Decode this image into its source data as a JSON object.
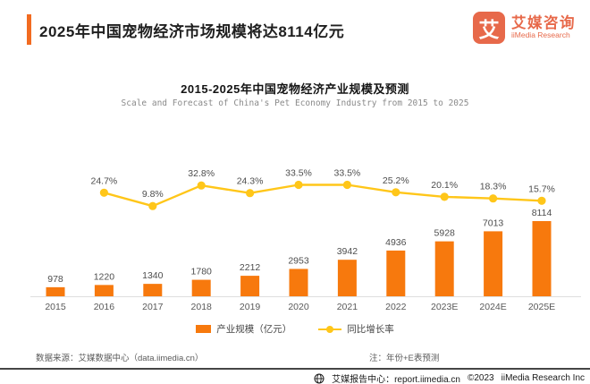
{
  "header": {
    "title": "2025年中国宠物经济市场规模将达8114亿元",
    "logo": {
      "icon": "艾",
      "name_cn": "艾媒咨询",
      "name_en": "iiMedia Research"
    }
  },
  "chart": {
    "title": "2015-2025年中国宠物经济产业规模及预测",
    "subtitle": "Scale and Forecast of China's Pet Economy Industry from 2015 to 2025"
  },
  "chart_data": {
    "type": "bar",
    "title": "2015-2025年中国宠物经济产业规模及预测",
    "categories": [
      "2015",
      "2016",
      "2017",
      "2018",
      "2019",
      "2020",
      "2021",
      "2022",
      "2023E",
      "2024E",
      "2025E"
    ],
    "series": [
      {
        "name": "产业规模（亿元）",
        "type": "bar",
        "color": "#f7790d",
        "values": [
          978,
          1220,
          1340,
          1780,
          2212,
          2953,
          3942,
          4936,
          5928,
          7013,
          8114
        ]
      },
      {
        "name": "同比增长率",
        "type": "line",
        "color": "#ffc619",
        "unit": "%",
        "values": [
          null,
          24.7,
          9.8,
          32.8,
          24.3,
          33.5,
          33.5,
          25.2,
          20.1,
          18.3,
          15.7
        ]
      }
    ],
    "xlabel": "",
    "ylabel": "",
    "ylim_bar": [
      0,
      8114
    ],
    "grid": false,
    "legend_position": "bottom"
  },
  "legend": {
    "bar_label": "产业规模（亿元）",
    "line_label": "同比增长率"
  },
  "footer": {
    "source": "数据来源：艾媒数据中心（data.iimedia.cn）",
    "note": "注：年份+E表预测",
    "report_center": "艾媒报告中心：report.iimedia.cn",
    "copyright": "©2023",
    "company": "iiMedia Research Inc"
  },
  "colors": {
    "accent_orange": "#f26b21",
    "bar_orange": "#f7790d",
    "line_gold": "#ffc619",
    "brand": "#e7694a"
  }
}
